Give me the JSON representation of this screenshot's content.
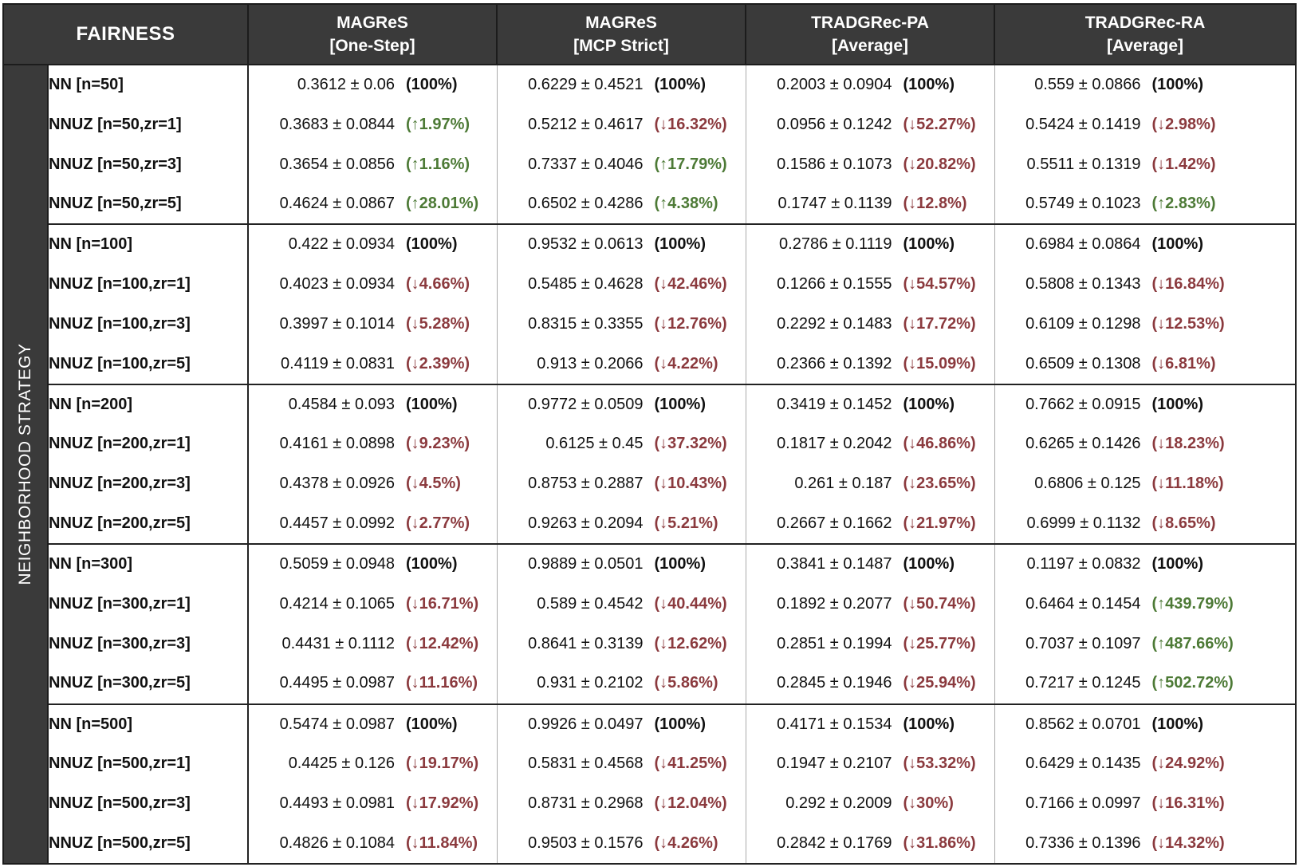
{
  "corner_label": "FAIRNESS",
  "side_label": "NEIGHBORHOOD STRATEGY",
  "columns": [
    {
      "line1": "MAGReS",
      "line2": "[One-Step]"
    },
    {
      "line1": "MAGReS",
      "line2": "[MCP Strict]"
    },
    {
      "line1": "TRADGRec-PA",
      "line2": "[Average]"
    },
    {
      "line1": "TRADGRec-RA",
      "line2": "[Average]"
    }
  ],
  "colors": {
    "header_bg": "#3a3a3a",
    "decrease": "#8b3a3e",
    "increase": "#4d7a36"
  },
  "rows": [
    {
      "label": "NN [n=50]",
      "cells": [
        {
          "value": "0.3612 ± 0.06",
          "change": "(100%)",
          "dir": "base"
        },
        {
          "value": "0.6229 ± 0.4521",
          "change": "(100%)",
          "dir": "base"
        },
        {
          "value": "0.2003 ± 0.0904",
          "change": "(100%)",
          "dir": "base"
        },
        {
          "value": "0.559 ± 0.0866",
          "change": "(100%)",
          "dir": "base"
        }
      ]
    },
    {
      "label": "NNUZ [n=50,zr=1]",
      "cells": [
        {
          "value": "0.3683 ± 0.0844",
          "change": "(↑1.97%)",
          "dir": "up"
        },
        {
          "value": "0.5212 ± 0.4617",
          "change": "(↓16.32%)",
          "dir": "down"
        },
        {
          "value": "0.0956 ± 0.1242",
          "change": "(↓52.27%)",
          "dir": "down"
        },
        {
          "value": "0.5424 ± 0.1419",
          "change": "(↓2.98%)",
          "dir": "down"
        }
      ]
    },
    {
      "label": "NNUZ [n=50,zr=3]",
      "cells": [
        {
          "value": "0.3654 ± 0.0856",
          "change": "(↑1.16%)",
          "dir": "up"
        },
        {
          "value": "0.7337 ± 0.4046",
          "change": "(↑17.79%)",
          "dir": "up"
        },
        {
          "value": "0.1586 ± 0.1073",
          "change": "(↓20.82%)",
          "dir": "down"
        },
        {
          "value": "0.5511 ± 0.1319",
          "change": "(↓1.42%)",
          "dir": "down"
        }
      ]
    },
    {
      "label": "NNUZ [n=50,zr=5]",
      "cells": [
        {
          "value": "0.4624 ± 0.0867",
          "change": "(↑28.01%)",
          "dir": "up"
        },
        {
          "value": "0.6502 ± 0.4286",
          "change": "(↑4.38%)",
          "dir": "up"
        },
        {
          "value": "0.1747 ± 0.1139",
          "change": "(↓12.8%)",
          "dir": "down"
        },
        {
          "value": "0.5749 ± 0.1023",
          "change": "(↑2.83%)",
          "dir": "up"
        }
      ]
    },
    {
      "label": "NN [n=100]",
      "cells": [
        {
          "value": "0.422 ± 0.0934",
          "change": "(100%)",
          "dir": "base"
        },
        {
          "value": "0.9532 ± 0.0613",
          "change": "(100%)",
          "dir": "base"
        },
        {
          "value": "0.2786 ± 0.1119",
          "change": "(100%)",
          "dir": "base"
        },
        {
          "value": "0.6984 ± 0.0864",
          "change": "(100%)",
          "dir": "base"
        }
      ]
    },
    {
      "label": "NNUZ [n=100,zr=1]",
      "cells": [
        {
          "value": "0.4023 ± 0.0934",
          "change": "(↓4.66%)",
          "dir": "down"
        },
        {
          "value": "0.5485 ± 0.4628",
          "change": "(↓42.46%)",
          "dir": "down"
        },
        {
          "value": "0.1266 ± 0.1555",
          "change": "(↓54.57%)",
          "dir": "down"
        },
        {
          "value": "0.5808 ± 0.1343",
          "change": "(↓16.84%)",
          "dir": "down"
        }
      ]
    },
    {
      "label": "NNUZ [n=100,zr=3]",
      "cells": [
        {
          "value": "0.3997 ± 0.1014",
          "change": "(↓5.28%)",
          "dir": "down"
        },
        {
          "value": "0.8315 ± 0.3355",
          "change": "(↓12.76%)",
          "dir": "down"
        },
        {
          "value": "0.2292 ± 0.1483",
          "change": "(↓17.72%)",
          "dir": "down"
        },
        {
          "value": "0.6109 ± 0.1298",
          "change": "(↓12.53%)",
          "dir": "down"
        }
      ]
    },
    {
      "label": "NNUZ [n=100,zr=5]",
      "cells": [
        {
          "value": "0.4119 ± 0.0831",
          "change": "(↓2.39%)",
          "dir": "down"
        },
        {
          "value": "0.913 ± 0.2066",
          "change": "(↓4.22%)",
          "dir": "down"
        },
        {
          "value": "0.2366 ± 0.1392",
          "change": "(↓15.09%)",
          "dir": "down"
        },
        {
          "value": "0.6509 ± 0.1308",
          "change": "(↓6.81%)",
          "dir": "down"
        }
      ]
    },
    {
      "label": "NN [n=200]",
      "cells": [
        {
          "value": "0.4584 ± 0.093",
          "change": "(100%)",
          "dir": "base"
        },
        {
          "value": "0.9772 ± 0.0509",
          "change": "(100%)",
          "dir": "base"
        },
        {
          "value": "0.3419 ± 0.1452",
          "change": "(100%)",
          "dir": "base"
        },
        {
          "value": "0.7662 ± 0.0915",
          "change": "(100%)",
          "dir": "base"
        }
      ]
    },
    {
      "label": "NNUZ [n=200,zr=1]",
      "cells": [
        {
          "value": "0.4161 ± 0.0898",
          "change": "(↓9.23%)",
          "dir": "down"
        },
        {
          "value": "0.6125 ± 0.45",
          "change": "(↓37.32%)",
          "dir": "down"
        },
        {
          "value": "0.1817 ± 0.2042",
          "change": "(↓46.86%)",
          "dir": "down"
        },
        {
          "value": "0.6265 ± 0.1426",
          "change": "(↓18.23%)",
          "dir": "down"
        }
      ]
    },
    {
      "label": "NNUZ [n=200,zr=3]",
      "cells": [
        {
          "value": "0.4378 ± 0.0926",
          "change": "(↓4.5%)",
          "dir": "down"
        },
        {
          "value": "0.8753 ± 0.2887",
          "change": "(↓10.43%)",
          "dir": "down"
        },
        {
          "value": "0.261 ± 0.187",
          "change": "(↓23.65%)",
          "dir": "down"
        },
        {
          "value": "0.6806 ± 0.125",
          "change": "(↓11.18%)",
          "dir": "down"
        }
      ]
    },
    {
      "label": "NNUZ [n=200,zr=5]",
      "cells": [
        {
          "value": "0.4457 ± 0.0992",
          "change": "(↓2.77%)",
          "dir": "down"
        },
        {
          "value": "0.9263 ± 0.2094",
          "change": "(↓5.21%)",
          "dir": "down"
        },
        {
          "value": "0.2667 ± 0.1662",
          "change": "(↓21.97%)",
          "dir": "down"
        },
        {
          "value": "0.6999 ± 0.1132",
          "change": "(↓8.65%)",
          "dir": "down"
        }
      ]
    },
    {
      "label": "NN [n=300]",
      "cells": [
        {
          "value": "0.5059 ± 0.0948",
          "change": "(100%)",
          "dir": "base"
        },
        {
          "value": "0.9889 ± 0.0501",
          "change": "(100%)",
          "dir": "base"
        },
        {
          "value": "0.3841 ± 0.1487",
          "change": "(100%)",
          "dir": "base"
        },
        {
          "value": "0.1197 ± 0.0832",
          "change": "(100%)",
          "dir": "base"
        }
      ]
    },
    {
      "label": "NNUZ [n=300,zr=1]",
      "cells": [
        {
          "value": "0.4214 ± 0.1065",
          "change": "(↓16.71%)",
          "dir": "down"
        },
        {
          "value": "0.589 ± 0.4542",
          "change": "(↓40.44%)",
          "dir": "down"
        },
        {
          "value": "0.1892 ± 0.2077",
          "change": "(↓50.74%)",
          "dir": "down"
        },
        {
          "value": "0.6464 ± 0.1454",
          "change": "(↑439.79%)",
          "dir": "up"
        }
      ]
    },
    {
      "label": "NNUZ [n=300,zr=3]",
      "cells": [
        {
          "value": "0.4431 ± 0.1112",
          "change": "(↓12.42%)",
          "dir": "down"
        },
        {
          "value": "0.8641 ± 0.3139",
          "change": "(↓12.62%)",
          "dir": "down"
        },
        {
          "value": "0.2851 ± 0.1994",
          "change": "(↓25.77%)",
          "dir": "down"
        },
        {
          "value": "0.7037 ± 0.1097",
          "change": "(↑487.66%)",
          "dir": "up"
        }
      ]
    },
    {
      "label": "NNUZ [n=300,zr=5]",
      "cells": [
        {
          "value": "0.4495 ± 0.0987",
          "change": "(↓11.16%)",
          "dir": "down"
        },
        {
          "value": "0.931 ± 0.2102",
          "change": "(↓5.86%)",
          "dir": "down"
        },
        {
          "value": "0.2845 ± 0.1946",
          "change": "(↓25.94%)",
          "dir": "down"
        },
        {
          "value": "0.7217 ± 0.1245",
          "change": "(↑502.72%)",
          "dir": "up"
        }
      ]
    },
    {
      "label": "NN [n=500]",
      "cells": [
        {
          "value": "0.5474 ± 0.0987",
          "change": "(100%)",
          "dir": "base"
        },
        {
          "value": "0.9926 ± 0.0497",
          "change": "(100%)",
          "dir": "base"
        },
        {
          "value": "0.4171 ± 0.1534",
          "change": "(100%)",
          "dir": "base"
        },
        {
          "value": "0.8562 ± 0.0701",
          "change": "(100%)",
          "dir": "base"
        }
      ]
    },
    {
      "label": "NNUZ [n=500,zr=1]",
      "cells": [
        {
          "value": "0.4425 ± 0.126",
          "change": "(↓19.17%)",
          "dir": "down"
        },
        {
          "value": "0.5831 ± 0.4568",
          "change": "(↓41.25%)",
          "dir": "down"
        },
        {
          "value": "0.1947 ± 0.2107",
          "change": "(↓53.32%)",
          "dir": "down"
        },
        {
          "value": "0.6429 ± 0.1435",
          "change": "(↓24.92%)",
          "dir": "down"
        }
      ]
    },
    {
      "label": "NNUZ [n=500,zr=3]",
      "cells": [
        {
          "value": "0.4493 ± 0.0981",
          "change": "(↓17.92%)",
          "dir": "down"
        },
        {
          "value": "0.8731 ± 0.2968",
          "change": "(↓12.04%)",
          "dir": "down"
        },
        {
          "value": "0.292 ± 0.2009",
          "change": "(↓30%)",
          "dir": "down"
        },
        {
          "value": "0.7166 ± 0.0997",
          "change": "(↓16.31%)",
          "dir": "down"
        }
      ]
    },
    {
      "label": "NNUZ [n=500,zr=5]",
      "cells": [
        {
          "value": "0.4826 ± 0.1084",
          "change": "(↓11.84%)",
          "dir": "down"
        },
        {
          "value": "0.9503 ± 0.1576",
          "change": "(↓4.26%)",
          "dir": "down"
        },
        {
          "value": "0.2842 ± 0.1769",
          "change": "(↓31.86%)",
          "dir": "down"
        },
        {
          "value": "0.7336 ± 0.1396",
          "change": "(↓14.32%)",
          "dir": "down"
        }
      ]
    }
  ]
}
